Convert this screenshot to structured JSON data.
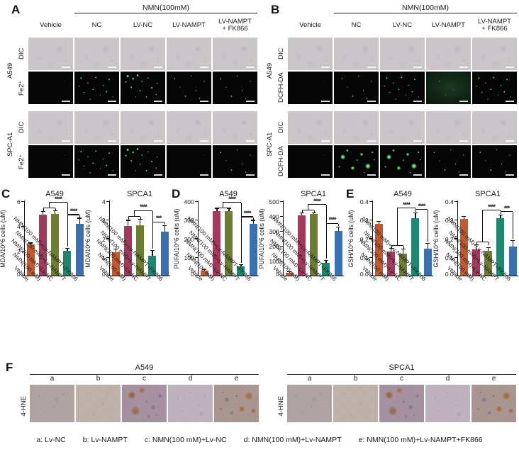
{
  "bar_colors": [
    "#bf5a33",
    "#a23a5d",
    "#6d7e34",
    "#1f8770",
    "#3c6fae"
  ],
  "accent_green": "#52d67f",
  "panel_a": {
    "label": "A",
    "header": "NMN(100mM)",
    "col_headers": [
      "Vehicle",
      "NC",
      "LV-NC",
      "LV-NAMPT",
      "LV-NAMPT\n+ FK866"
    ],
    "groups": [
      {
        "cell_line": "A549",
        "rows": [
          {
            "type": "DIC",
            "cells": [
              "dic",
              "dic",
              "dic",
              "dic",
              "dic"
            ]
          },
          {
            "type": "Fe2⁺",
            "cells": [
              "fl-none",
              "fl-medium",
              "fl-dense",
              "fl-sparse",
              "fl-sparse"
            ]
          }
        ]
      },
      {
        "cell_line": "SPC-A1",
        "rows": [
          {
            "type": "DIC",
            "cells": [
              "dic",
              "dic",
              "dic",
              "dic",
              "dic"
            ]
          },
          {
            "type": "Fe2⁺",
            "cells": [
              "fl-none",
              "fl-medium",
              "fl-dense",
              "fl-none",
              "fl-sparse"
            ]
          }
        ]
      }
    ]
  },
  "panel_b": {
    "label": "B",
    "header": "NMN(100mM)",
    "col_headers": [
      "Vehicle",
      "NC",
      "LV-NC",
      "LV-NAMPT",
      "LV-NAMPT\n+ FK866"
    ],
    "groups": [
      {
        "cell_line": "A549",
        "rows": [
          {
            "type": "DIC",
            "cells": [
              "dic",
              "dic",
              "dic",
              "dic",
              "dic"
            ]
          },
          {
            "type": "DCFH-DA",
            "cells": [
              "fl-none",
              "fl-sparse",
              "fl-medium",
              "fl-wash",
              "fl-medium"
            ]
          }
        ]
      },
      {
        "cell_line": "SPC-A1",
        "rows": [
          {
            "type": "DIC",
            "cells": [
              "dic",
              "dic",
              "dic",
              "dic",
              "dic"
            ]
          },
          {
            "type": "DCFH-DA",
            "cells": [
              "fl-none",
              "fl-blobs",
              "fl-blobs",
              "fl-sparse",
              "fl-sparse"
            ]
          }
        ]
      }
    ]
  },
  "panel_labels": {
    "c": "C",
    "d": "D",
    "e": "E",
    "f": "F"
  },
  "chart_data": [
    {
      "panel": "C",
      "type": "bar",
      "title": "A549",
      "ylabel": "MDA/10^6 cells (uM)",
      "ylim": [
        0,
        6
      ],
      "yticks": [
        "0",
        "2",
        "4",
        "6"
      ],
      "categories": [
        "Vehicle",
        "NMN(100 mM)",
        "NMN(100 mM)+Lv-NC",
        "NMN(100 mM)+Lv-NAMPT",
        "NMN(100 mM)+Lv-NAMPT+FK866"
      ],
      "values": [
        2.5,
        4.9,
        5.0,
        2.0,
        4.2
      ],
      "errors": [
        0.1,
        0.25,
        0.18,
        0.15,
        0.4
      ],
      "sig": [
        {
          "stars": "****",
          "type": "nested"
        },
        {
          "stars": "****",
          "type": "pair"
        }
      ]
    },
    {
      "panel": "C",
      "type": "bar",
      "title": "SPCA1",
      "ylabel": "MDA/10^6 cells (uM)",
      "ylim": [
        0,
        4
      ],
      "yticks": [
        "0",
        "1",
        "2",
        "3",
        "4"
      ],
      "categories": [
        "Vehicle",
        "NMN(100 mM)",
        "NMN(100 mM)+Lv-NC",
        "NMN(100 mM)+Lv-NAMPT",
        "NMN(100 mM)+Lv-NAMPT+FK866"
      ],
      "values": [
        1.25,
        2.65,
        2.72,
        1.05,
        2.35
      ],
      "errors": [
        0.15,
        0.3,
        0.3,
        0.28,
        0.33
      ],
      "sig": [
        {
          "stars": "****",
          "type": "nested"
        },
        {
          "stars": "***",
          "type": "pair"
        }
      ]
    },
    {
      "panel": "D",
      "type": "bar",
      "title": "A549",
      "ylabel": "PUFA/10^6 cells (uM)",
      "ylim": [
        0,
        400
      ],
      "yticks": [
        "0",
        "100",
        "200",
        "300",
        "400"
      ],
      "categories": [
        "Vehicle",
        "NMN(100 mM)",
        "NMN(100 mM)+Lv-NC",
        "NMN(100 mM)+Lv-NAMPT",
        "NMN(100 mM)+Lv-NAMPT+FK866"
      ],
      "values": [
        25,
        348,
        348,
        48,
        280
      ],
      "errors": [
        4,
        12,
        12,
        8,
        15
      ],
      "sig": [
        {
          "stars": "****",
          "type": "nested"
        },
        {
          "stars": "****",
          "type": "pair"
        }
      ]
    },
    {
      "panel": "D",
      "type": "bar",
      "title": "SPCA1",
      "ylabel": "PUFA/10^6 cells (uM)",
      "ylim": [
        0,
        500
      ],
      "yticks": [
        "0",
        "100",
        "200",
        "300",
        "400",
        "500"
      ],
      "categories": [
        "Vehicle",
        "NMN(100 mM)",
        "NMN(100 mM)+Lv-NC",
        "NMN(100 mM)+Lv-NAMPT",
        "NMN(100 mM)+Lv-NAMPT+FK866"
      ],
      "values": [
        18,
        405,
        412,
        85,
        300
      ],
      "errors": [
        4,
        12,
        6,
        15,
        25
      ],
      "sig": [
        {
          "stars": "****",
          "type": "nested"
        },
        {
          "stars": "****",
          "type": "pair"
        }
      ]
    },
    {
      "panel": "E",
      "type": "bar",
      "title": "A549",
      "ylabel": "GSH/10^6 cells (uM)",
      "ylim": [
        0,
        0.4
      ],
      "yticks": [
        "0.0",
        "0.1",
        "0.2",
        "0.3",
        "0.4"
      ],
      "categories": [
        "Vehicle",
        "NMN(100 mM)",
        "NMN(100 mM)+Lv-NC",
        "NMN(100 mM)+Lv-NAMPT",
        "NMN(100 mM)+Lv-NAMPT+FK866"
      ],
      "values": [
        0.28,
        0.13,
        0.12,
        0.31,
        0.145
      ],
      "errors": [
        0.008,
        0.015,
        0.02,
        0.025,
        0.025
      ],
      "sig": [
        {
          "stars": "****",
          "type": "nested"
        },
        {
          "stars": "****",
          "type": "pair"
        }
      ]
    },
    {
      "panel": "E",
      "type": "bar",
      "title": "SPCA1",
      "ylabel": "GSH/10^6 cells (uM)",
      "ylim": [
        0,
        0.4
      ],
      "yticks": [
        "0.0",
        "0.1",
        "0.2",
        "0.3",
        "0.4"
      ],
      "categories": [
        "Vehicle",
        "NMN(100 mM)",
        "NMN(100 mM)+Lv-NC",
        "NMN(100 mM)+Lv-NAMPT",
        "NMN(100 mM)+Lv-NAMPT+FK866"
      ],
      "values": [
        0.305,
        0.14,
        0.135,
        0.31,
        0.155
      ],
      "errors": [
        0.012,
        0.025,
        0.015,
        0.012,
        0.03
      ],
      "sig": [
        {
          "stars": "****",
          "type": "nested"
        },
        {
          "stars": "***",
          "type": "pair"
        }
      ]
    }
  ],
  "panel_f": {
    "label": "F",
    "row_label": "4-HNE",
    "groups": [
      {
        "title": "A549",
        "letters": [
          "a",
          "b",
          "c",
          "d",
          "e"
        ],
        "stains": [
          "faint",
          "faint2",
          "strong",
          "mild",
          "strong2"
        ]
      },
      {
        "title": "SPCA1",
        "letters": [
          "a",
          "b",
          "c",
          "d",
          "e"
        ],
        "stains": [
          "faint",
          "faint2",
          "strong",
          "mild",
          "strong2"
        ]
      }
    ],
    "caption": [
      "a: Lv-NC",
      "b: Lv-NAMPT",
      "c: NMN(100 mM)+Lv-NC",
      "d: NMN(100 mM)+Lv-NAMPT",
      "e: NMN(100 mM)+Lv-NAMPT+FK866"
    ]
  }
}
